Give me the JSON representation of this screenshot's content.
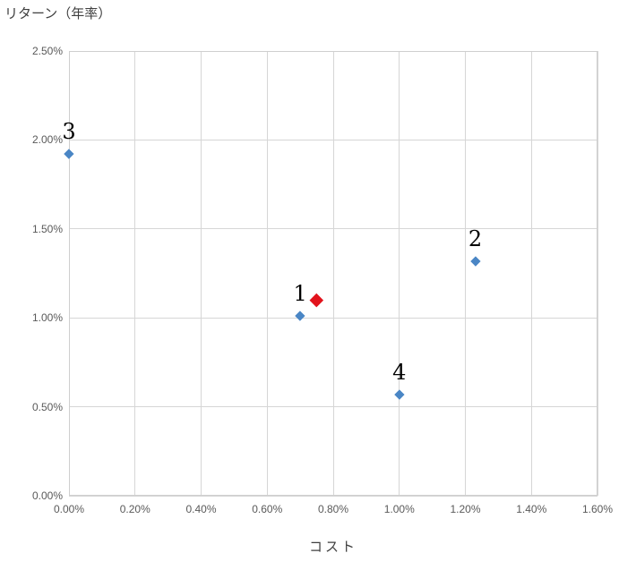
{
  "chart_data": {
    "type": "scatter",
    "title": "リターン（年率）",
    "xlabel": "コスト",
    "ylabel": "リターン（年率）",
    "unit": "%",
    "xlim": [
      0.0,
      1.6
    ],
    "ylim": [
      0.0,
      2.5
    ],
    "grid": true,
    "legend": "none",
    "x_ticks": [
      {
        "value": 0.0,
        "label": "0.00%"
      },
      {
        "value": 0.2,
        "label": "0.20%"
      },
      {
        "value": 0.4,
        "label": "0.40%"
      },
      {
        "value": 0.6,
        "label": "0.60%"
      },
      {
        "value": 0.8,
        "label": "0.80%"
      },
      {
        "value": 1.0,
        "label": "1.00%"
      },
      {
        "value": 1.2,
        "label": "1.20%"
      },
      {
        "value": 1.4,
        "label": "1.40%"
      },
      {
        "value": 1.6,
        "label": "1.60%"
      }
    ],
    "y_ticks": [
      {
        "value": 0.0,
        "label": "0.00%"
      },
      {
        "value": 0.5,
        "label": "0.50%"
      },
      {
        "value": 1.0,
        "label": "1.00%"
      },
      {
        "value": 1.5,
        "label": "1.50%"
      },
      {
        "value": 2.0,
        "label": "2.00%"
      },
      {
        "value": 2.5,
        "label": "2.50%"
      }
    ],
    "series": [
      {
        "name": "numbered-funds",
        "color": "#4a86c5",
        "marker": "diamond",
        "marker_size": 11,
        "points": [
          {
            "label": "1",
            "x": 0.7,
            "y": 1.01
          },
          {
            "label": "2",
            "x": 1.23,
            "y": 1.32
          },
          {
            "label": "3",
            "x": 0.0,
            "y": 1.92
          },
          {
            "label": "4",
            "x": 1.0,
            "y": 0.57
          }
        ]
      },
      {
        "name": "highlighted-point",
        "color": "#e2131c",
        "marker": "diamond",
        "marker_size": 15,
        "points": [
          {
            "label": "",
            "x": 0.75,
            "y": 1.1
          }
        ]
      }
    ]
  }
}
